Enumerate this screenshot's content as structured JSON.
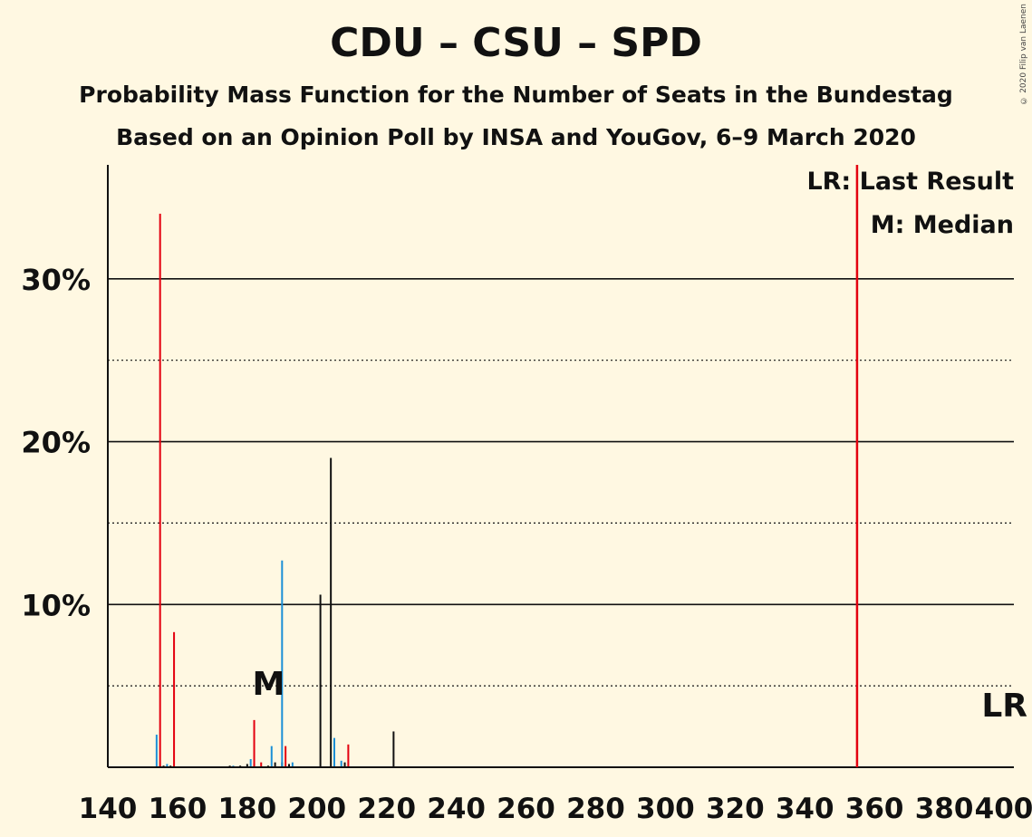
{
  "chart_data": {
    "type": "bar",
    "title": "CDU – CSU – SPD",
    "subtitle": "Probability Mass Function for the Number of Seats in the Bundestag",
    "subtitle2": "Based on an Opinion Poll by INSA and YouGov, 6–9 March 2020",
    "copyright": "© 2020 Filip van Laenen",
    "xlabel": "",
    "ylabel": "",
    "xlim": [
      140,
      400
    ],
    "ylim": [
      0,
      37
    ],
    "x_ticks": [
      140,
      160,
      180,
      200,
      220,
      240,
      260,
      280,
      300,
      320,
      340,
      360,
      380,
      400
    ],
    "y_ticks": [
      {
        "value": 10,
        "label": "10%"
      },
      {
        "value": 20,
        "label": "20%"
      },
      {
        "value": 30,
        "label": "30%"
      }
    ],
    "minor_gridlines": [
      5,
      15,
      25
    ],
    "legend_position": "top-right",
    "legend": [
      "LR: Last Result",
      "M: Median"
    ],
    "last_result": {
      "x": 355,
      "label": "LR"
    },
    "median": {
      "x": 189,
      "label": "M"
    },
    "colors": {
      "background": "#FFF8E2",
      "cdu": "#111111",
      "csu": "#1B8FD6",
      "spd": "#E3000F",
      "last_result_line": "#E3000F"
    },
    "series": [
      {
        "name": "CDU",
        "color_key": "cdu",
        "x": [
          155,
          156,
          158,
          175,
          178,
          180,
          182,
          186,
          188,
          190,
          192,
          201,
          204,
          208,
          222
        ],
        "values": [
          0.1,
          0.1,
          0.1,
          0.1,
          0.1,
          0.2,
          0.2,
          0.1,
          0.3,
          0.3,
          0.2,
          10.6,
          19.0,
          0.3,
          2.2
        ]
      },
      {
        "name": "CSU",
        "color_key": "csu",
        "x": [
          154,
          157,
          176,
          181,
          187,
          190,
          193,
          205,
          207
        ],
        "values": [
          2.0,
          0.2,
          0.1,
          0.5,
          1.3,
          12.7,
          0.3,
          1.8,
          0.4
        ]
      },
      {
        "name": "SPD",
        "color_key": "spd",
        "x": [
          155,
          159,
          182,
          184,
          191,
          209
        ],
        "values": [
          34.0,
          8.3,
          2.9,
          0.3,
          1.3,
          1.4
        ]
      }
    ]
  }
}
